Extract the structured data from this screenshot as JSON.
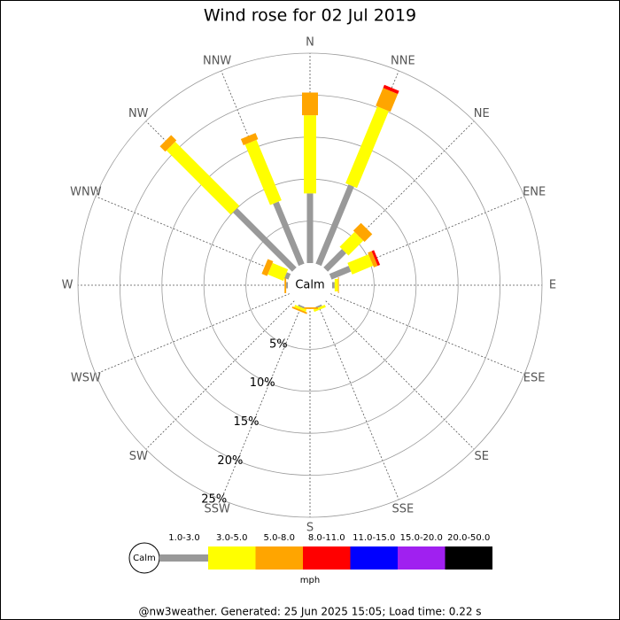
{
  "chart_data": {
    "type": "windrose",
    "title": "Wind rose for 02 Jul 2019",
    "directions": [
      "N",
      "NNE",
      "NE",
      "ENE",
      "E",
      "ESE",
      "SE",
      "SSE",
      "S",
      "SSW",
      "SW",
      "WSW",
      "W",
      "WNW",
      "NW",
      "NNW"
    ],
    "series": [
      {
        "name": "1.0-3.0",
        "color": "#999999",
        "values": [
          8.3,
          10.2,
          3.1,
          2.5,
          0.3,
          0,
          0,
          0.2,
          0,
          0.2,
          0,
          0,
          0.2,
          0.5,
          10.0,
          8.0
        ]
      },
      {
        "name": "3.0-5.0",
        "color": "#ffff00",
        "values": [
          9.3,
          9.9,
          2.5,
          2.7,
          0.4,
          0,
          0,
          0.3,
          0,
          0.3,
          0,
          0,
          0,
          2.0,
          10.8,
          7.8
        ]
      },
      {
        "name": "5.0-8.0",
        "color": "#ffa500",
        "values": [
          2.7,
          2.3,
          1.3,
          0.5,
          0.1,
          0,
          0,
          0,
          0.2,
          0.2,
          0,
          0,
          0.2,
          0.7,
          0.9,
          0.8
        ]
      },
      {
        "name": "8.0-11.0",
        "color": "#ff0000",
        "values": [
          0,
          0.4,
          0,
          0.3,
          0,
          0,
          0,
          0,
          0,
          0,
          0,
          0,
          0,
          0,
          0,
          0
        ]
      },
      {
        "name": "11.0-15.0",
        "color": "#0000ff",
        "values": [
          0,
          0,
          0,
          0,
          0,
          0,
          0,
          0,
          0,
          0,
          0,
          0,
          0,
          0,
          0,
          0
        ]
      },
      {
        "name": "15.0-20.0",
        "color": "#a020f0",
        "values": [
          0,
          0,
          0,
          0,
          0,
          0,
          0,
          0,
          0,
          0,
          0,
          0,
          0,
          0,
          0,
          0
        ]
      },
      {
        "name": "20.0-50.0",
        "color": "#000000",
        "values": [
          0,
          0,
          0,
          0,
          0,
          0,
          0,
          0,
          0,
          0,
          0,
          0,
          0,
          0,
          0,
          0
        ]
      }
    ],
    "rlim": [
      0,
      25
    ],
    "rticks": [
      {
        "value": 5,
        "label": "5%"
      },
      {
        "value": 10,
        "label": "10%"
      },
      {
        "value": 15,
        "label": "15%"
      },
      {
        "value": 20,
        "label": "20%"
      },
      {
        "value": 25,
        "label": "25%"
      }
    ],
    "calm_label": "Calm",
    "unit_label": "mph"
  },
  "footer": "@nw3weather. Generated: 25 Jun 2025 15:05; Load time: 0.22 s"
}
